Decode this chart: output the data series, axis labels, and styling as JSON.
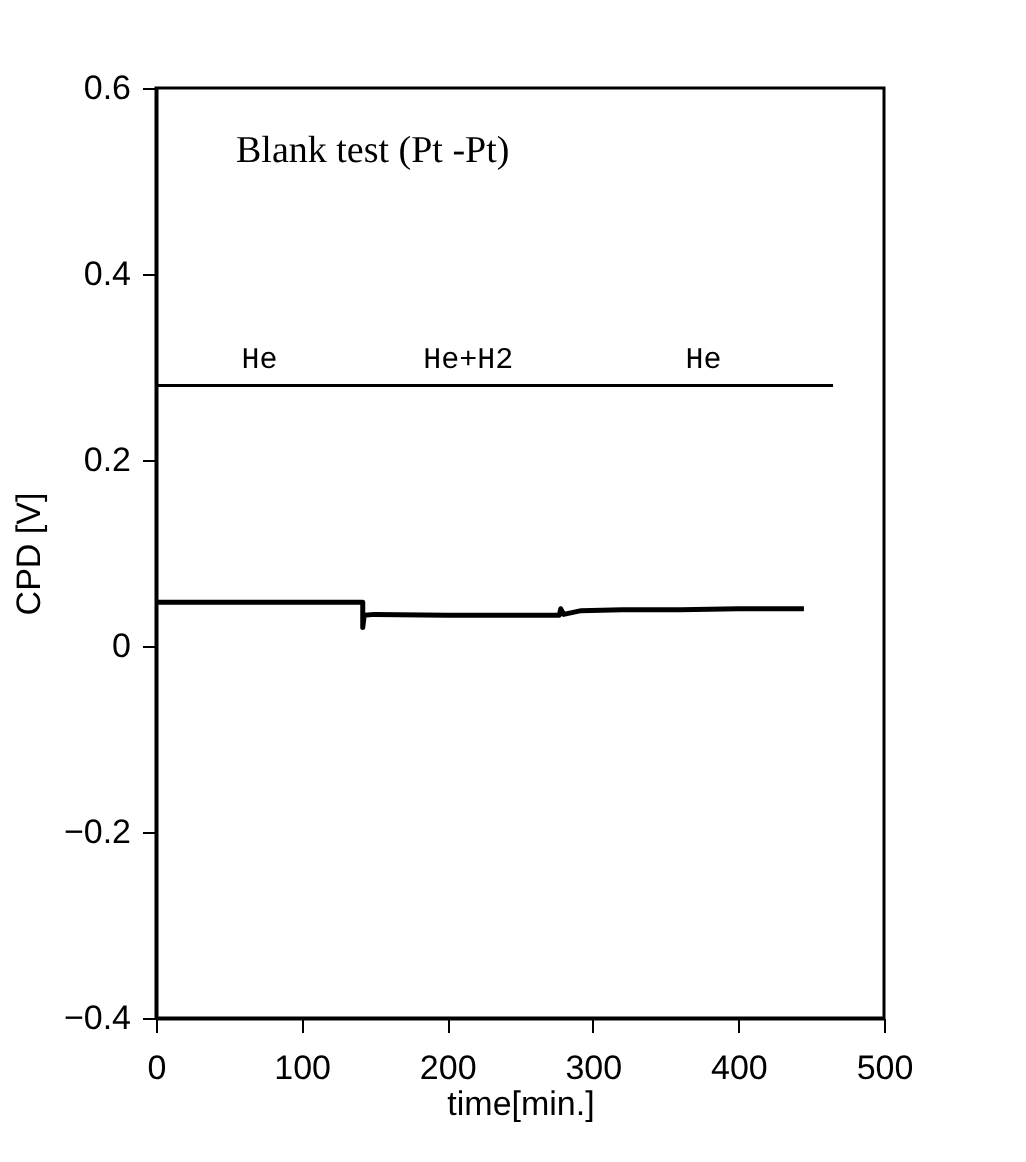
{
  "chart_data": {
    "type": "line",
    "xlabel": "time[min.]",
    "ylabel": "CPD [V]",
    "xlim": [
      0,
      500
    ],
    "xticks": [
      0,
      100,
      200,
      300,
      400,
      500
    ],
    "ylim": [
      -0.4,
      0.6
    ],
    "yticks": [
      -0.4,
      -0.2,
      0,
      0.2,
      0.4,
      0.6
    ],
    "grid": false,
    "marker": "none",
    "line_style": "solid",
    "series": [
      {
        "color": "#000000",
        "x": [
          0,
          142,
          142,
          143,
          150,
          200,
          250,
          277,
          278,
          280,
          292,
          320,
          360,
          400,
          445
        ],
        "values": [
          0.047,
          0.047,
          0.02,
          0.033,
          0.034,
          0.033,
          0.033,
          0.033,
          0.04,
          0.034,
          0.038,
          0.039,
          0.039,
          0.04,
          0.04
        ]
      },
      {
        "color": "#000000",
        "x": [
          0,
          142,
          287,
          465
        ],
        "values": [
          0.28,
          0.28,
          0.28,
          0.28
        ]
      }
    ],
    "annotations": [
      "Blank test (Pt -Pt)",
      "He",
      "He+H2",
      "He"
    ]
  }
}
